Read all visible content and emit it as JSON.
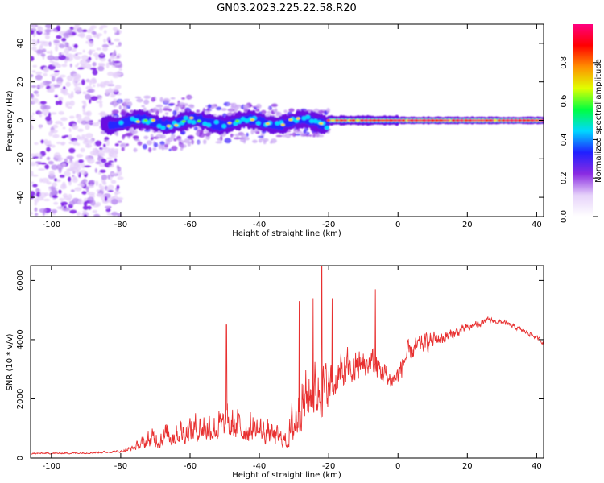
{
  "title": "GN03.2023.225.22.58.R20",
  "chart_data": [
    {
      "type": "heatmap",
      "name": "spectrogram",
      "xlabel": "Height of straight line (km)",
      "ylabel": "Frequency (Hz)",
      "xlim": [
        -106,
        42
      ],
      "ylim": [
        -50,
        50
      ],
      "xticks": [
        -100,
        -80,
        -60,
        -40,
        -20,
        0,
        20,
        40
      ],
      "yticks": [
        -40,
        -20,
        0,
        20,
        40
      ],
      "colorbar": {
        "label": "Normalized spectral amplitude",
        "range": [
          0,
          1
        ],
        "ticks": [
          0.0,
          0.2,
          0.4,
          0.6,
          0.8
        ],
        "colors": [
          "#ffffff",
          "#e6d2fa",
          "#8a2be2",
          "#2020ff",
          "#00d8ff",
          "#00ff40",
          "#e0ff00",
          "#ff9000",
          "#ff0000",
          "#ff0080"
        ]
      },
      "ridge": {
        "frequency": 0,
        "x_start": -85,
        "x_end": 42
      }
    },
    {
      "type": "line",
      "name": "snr",
      "xlabel": "Height of straight line (km)",
      "ylabel": "SNR (10 * v/v)",
      "xlim": [
        -106,
        42
      ],
      "ylim": [
        0,
        6500
      ],
      "xticks": [
        -100,
        -80,
        -60,
        -40,
        -20,
        0,
        20,
        40
      ],
      "yticks": [
        0,
        2000,
        4000,
        6000
      ],
      "color": "#e83030",
      "envelope": {
        "x": [
          -106,
          -90,
          -80,
          -76,
          -72,
          -68,
          -64,
          -60,
          -56,
          -52,
          -48,
          -44,
          -40,
          -36,
          -32,
          -30,
          -28,
          -26,
          -24,
          -22,
          -20,
          -18,
          -16,
          -14,
          -12,
          -10,
          -8,
          -6,
          -4,
          -2,
          0,
          2,
          4,
          6,
          8,
          10,
          14,
          18,
          22,
          26,
          30,
          34,
          38,
          42
        ],
        "base": [
          150,
          170,
          220,
          350,
          550,
          700,
          800,
          900,
          1000,
          1000,
          1000,
          950,
          900,
          700,
          550,
          1200,
          1800,
          2000,
          2200,
          2200,
          2300,
          2600,
          2800,
          2900,
          3000,
          3100,
          3200,
          3000,
          2800,
          2600,
          2800,
          3400,
          3600,
          3800,
          3900,
          4000,
          4100,
          4300,
          4500,
          4650,
          4600,
          4400,
          4200,
          3900
        ],
        "amp": [
          60,
          70,
          100,
          250,
          800,
          1000,
          1100,
          1200,
          1300,
          1400,
          1400,
          1300,
          1200,
          900,
          700,
          2300,
          2500,
          2400,
          2300,
          2600,
          2000,
          1800,
          1600,
          1500,
          1400,
          1400,
          1200,
          1300,
          1100,
          900,
          700,
          600,
          600,
          500,
          500,
          450,
          350,
          250,
          180,
          150,
          130,
          120,
          120,
          120
        ]
      },
      "peaks": [
        {
          "x": -22.0,
          "y": 6500
        },
        {
          "x": -28.5,
          "y": 5300
        },
        {
          "x": -24.5,
          "y": 5400
        },
        {
          "x": -6.5,
          "y": 5700
        },
        {
          "x": -49.5,
          "y": 4500
        },
        {
          "x": -19.0,
          "y": 5400
        }
      ]
    }
  ]
}
